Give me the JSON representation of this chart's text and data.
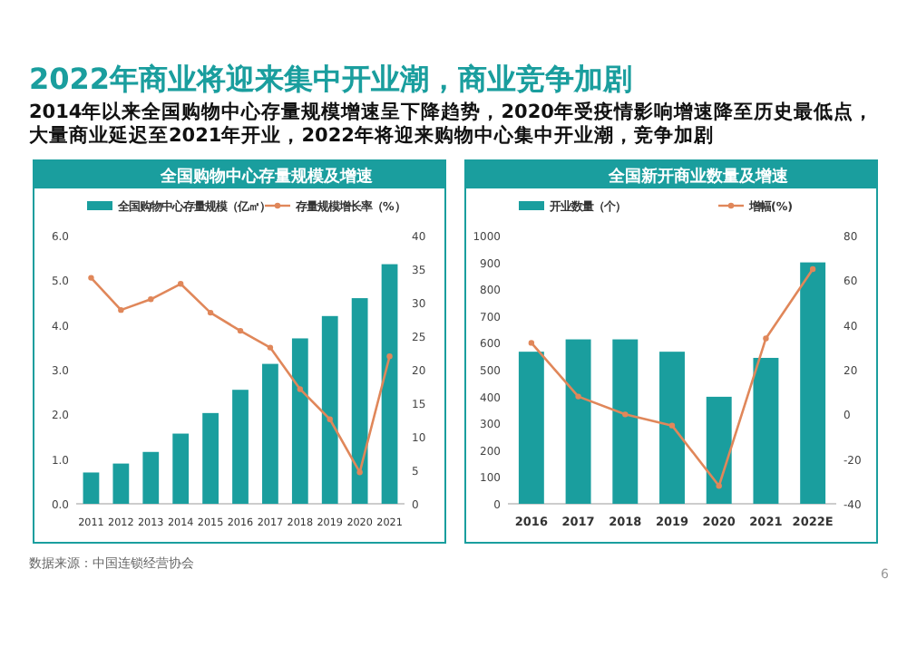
{
  "chart_data": [
    {
      "type": "bar",
      "title": "全国购物中心存量规模及增速",
      "annotations": [
        "2022年商业将迎来集中开业潮，商业竞争加剧",
        "2014年以来全国购物中心存量规模增速呈下降趋势，2020年受疫情影响增速降至历史最低点，大量商业延迟至2021年开业，2022年将迎来购物中心集中开业潮，竞争加剧"
      ],
      "categories": [
        "2011",
        "2012",
        "2013",
        "2014",
        "2015",
        "2016",
        "2017",
        "2018",
        "2019",
        "2020",
        "2021"
      ],
      "series": [
        {
          "name": "全国购物中心存量规模（亿㎡）",
          "color": "#1a9e9e",
          "values": [
            0.7,
            0.9,
            1.16,
            1.57,
            2.03,
            2.55,
            3.13,
            3.7,
            4.2,
            4.6,
            5.36
          ]
        },
        {
          "name": "存量规模增长率（%）",
          "type": "line",
          "axis": "y2",
          "color": "#e0875a",
          "values": [
            33.7,
            28.9,
            30.5,
            32.8,
            28.5,
            25.8,
            23.3,
            17.1,
            12.6,
            4.7,
            22.0
          ]
        }
      ],
      "ylim": [
        0,
        6
      ],
      "yticks": [
        {
          "value": 0,
          "label": "0.0"
        },
        {
          "value": 1,
          "label": "1.0"
        },
        {
          "value": 2,
          "label": "2.0"
        },
        {
          "value": 3,
          "label": "3.0"
        },
        {
          "value": 4,
          "label": "4.0"
        },
        {
          "value": 5,
          "label": "5.0"
        },
        {
          "value": 6,
          "label": "6.0"
        }
      ],
      "y2lim": [
        0,
        40
      ],
      "y2ticks": [
        0,
        5,
        10,
        15,
        20,
        25,
        30,
        35,
        40
      ],
      "legend": "top",
      "marker": "circle"
    },
    {
      "type": "bar",
      "title": "全国新开商业数量及增速",
      "annotations": [
        "数据来源：中国连锁经营协会",
        "6"
      ],
      "categories": [
        "2016",
        "2017",
        "2018",
        "2019",
        "2020",
        "2021",
        "2022E"
      ],
      "series": [
        {
          "name": "开业数量（个）",
          "color": "#1a9e9e",
          "values": [
            567,
            613,
            613,
            567,
            399,
            544,
            900
          ]
        },
        {
          "name": "增幅(%)",
          "type": "line",
          "axis": "y2",
          "color": "#e0875a",
          "values": [
            32,
            8,
            0,
            -5,
            -32,
            34,
            65
          ]
        }
      ],
      "ylim": [
        0,
        1000
      ],
      "yticks": [
        0,
        100,
        200,
        300,
        400,
        500,
        600,
        700,
        800,
        900,
        1000
      ],
      "y2lim": [
        -40,
        80
      ],
      "y2ticks": [
        -40,
        -20,
        0,
        20,
        40,
        60,
        80
      ],
      "legend": "top",
      "marker": "circle"
    }
  ]
}
